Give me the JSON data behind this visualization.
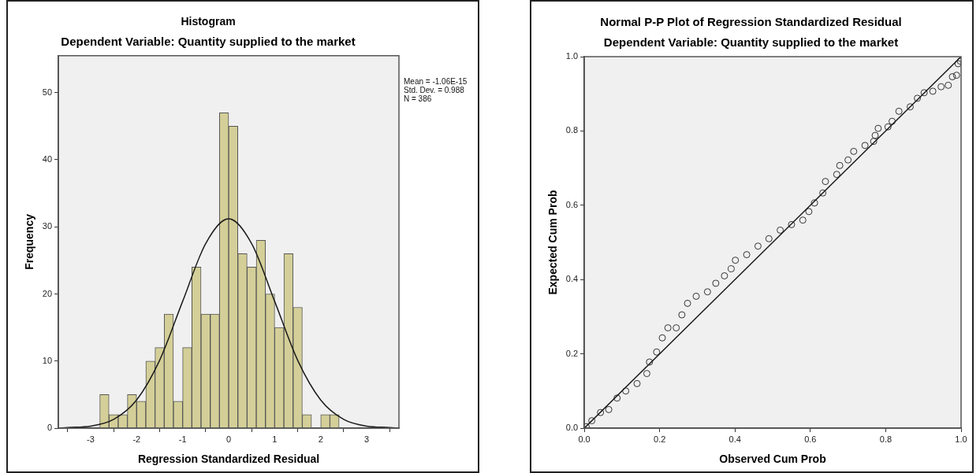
{
  "chart_data": [
    {
      "type": "histogram",
      "title": "Histogram",
      "subtitle": "Dependent Variable: Quantity supplied to the market",
      "xlabel": "Regression Standardized Residual",
      "ylabel": "Frequency",
      "annotations": [
        "Mean = -1.06E-15",
        "Std. Dev. = 0.988",
        "N = 386"
      ],
      "xlim": [
        -3.7,
        3.7
      ],
      "xticks": [
        -3,
        -2,
        -1,
        0,
        1,
        2,
        3
      ],
      "ylim": [
        0,
        55.5
      ],
      "yticks": [
        0,
        10,
        20,
        30,
        40,
        50
      ],
      "grid": false,
      "legend": false,
      "series": [
        {
          "type": "histogram",
          "color": "#d4cf98",
          "bins": [
            -2.8,
            -2.6,
            -2.4,
            -2.2,
            -2.0,
            -1.8,
            -1.6,
            -1.4,
            -1.2,
            -1.0,
            -0.8,
            -0.6,
            -0.4,
            -0.2,
            0,
            0.2,
            0.4,
            0.6,
            0.8,
            1.0,
            1.2,
            1.4,
            1.6,
            1.8,
            2.0,
            2.2,
            2.4
          ],
          "values": [
            5,
            2,
            2,
            5,
            4,
            10,
            12,
            17,
            4,
            12,
            24,
            17,
            17,
            47,
            45,
            26,
            24,
            28,
            20,
            15,
            26,
            18,
            2,
            0,
            2,
            2
          ]
        },
        {
          "type": "line",
          "color": "#1a1a1a",
          "x": [
            -3.7,
            -3.5,
            -3,
            -2.5,
            -2,
            -1.5,
            -1,
            -0.5,
            0,
            0.5,
            1,
            1.5,
            2,
            2.5,
            3,
            3.5,
            3.7
          ],
          "values": [
            0,
            0.1,
            0.3,
            1.3,
            4.2,
            10.1,
            18.9,
            27.5,
            31.2,
            27.5,
            18.9,
            10.1,
            4.2,
            1.3,
            0.3,
            0.1,
            0
          ]
        }
      ]
    },
    {
      "type": "scatter",
      "title": "Normal P-P Plot of Regression Standardized Residual",
      "subtitle": "Dependent Variable: Quantity supplied to the market",
      "xlabel": "Observed Cum Prob",
      "ylabel": "Expected Cum Prob",
      "xlim": [
        0,
        1
      ],
      "xticks": [
        {
          "value": 0,
          "label": "0.0"
        },
        0.2,
        0.4,
        0.6,
        0.8,
        {
          "value": 1,
          "label": "1.0"
        }
      ],
      "ylim": [
        0,
        1
      ],
      "yticks": [
        {
          "value": 0,
          "label": "0.0"
        },
        0.2,
        0.4,
        0.6,
        0.8,
        {
          "value": 1,
          "label": "1.0"
        }
      ],
      "grid": false,
      "legend": false,
      "series": [
        {
          "type": "scatter",
          "marker": "circle",
          "color": "#333333",
          "x": [
            0.005,
            0.02,
            0.043,
            0.065,
            0.087,
            0.11,
            0.14,
            0.166,
            0.173,
            0.192,
            0.207,
            0.222,
            0.244,
            0.259,
            0.274,
            0.297,
            0.327,
            0.349,
            0.372,
            0.39,
            0.401,
            0.431,
            0.461,
            0.49,
            0.52,
            0.55,
            0.58,
            0.596,
            0.611,
            0.633,
            0.64,
            0.67,
            0.678,
            0.7,
            0.715,
            0.745,
            0.768,
            0.772,
            0.78,
            0.806,
            0.817,
            0.835,
            0.865,
            0.884,
            0.902,
            0.925,
            0.947,
            0.966,
            0.977,
            0.988,
            0.992,
            0.998
          ],
          "values": [
            0.004,
            0.02,
            0.042,
            0.05,
            0.081,
            0.1,
            0.12,
            0.147,
            0.178,
            0.205,
            0.243,
            0.27,
            0.27,
            0.305,
            0.336,
            0.355,
            0.367,
            0.39,
            0.41,
            0.429,
            0.452,
            0.467,
            0.49,
            0.51,
            0.533,
            0.548,
            0.56,
            0.583,
            0.606,
            0.633,
            0.664,
            0.683,
            0.707,
            0.722,
            0.745,
            0.761,
            0.772,
            0.788,
            0.807,
            0.811,
            0.826,
            0.853,
            0.865,
            0.888,
            0.903,
            0.907,
            0.919,
            0.923,
            0.946,
            0.95,
            0.981,
            0.988
          ]
        },
        {
          "type": "line",
          "color": "#1a1a1a",
          "x": [
            0,
            1
          ],
          "values": [
            0,
            1
          ]
        }
      ]
    }
  ]
}
